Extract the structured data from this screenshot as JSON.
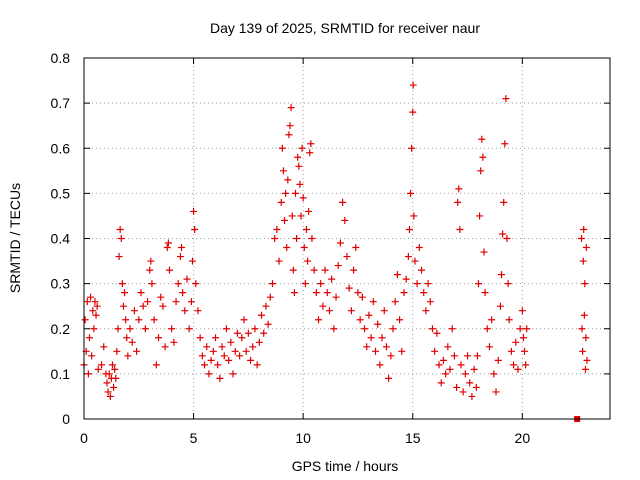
{
  "chart_data": {
    "type": "scatter",
    "title": "Day 139 of 2025, SRMTID for receiver naur",
    "xlabel": "GPS time / hours",
    "ylabel": "SRMTID / TECUs",
    "xlim": [
      0,
      24
    ],
    "ylim": [
      0,
      0.8
    ],
    "xticks": [
      0,
      5,
      10,
      15,
      20
    ],
    "xtick_labels": [
      "0",
      "5",
      "10",
      "15",
      "20"
    ],
    "yticks": [
      0,
      0.1,
      0.2,
      0.3,
      0.4,
      0.5,
      0.6,
      0.7,
      0.8
    ],
    "ytick_labels": [
      "0",
      "0.1",
      "0.2",
      "0.3",
      "0.4",
      "0.5",
      "0.6",
      "0.7",
      "0.8"
    ],
    "grid": true,
    "marker": "plus",
    "color": "#e00000",
    "series": [
      {
        "name": "SRMTID",
        "points": [
          [
            0.0,
            0.12
          ],
          [
            0.05,
            0.22
          ],
          [
            0.1,
            0.15
          ],
          [
            0.15,
            0.26
          ],
          [
            0.2,
            0.1
          ],
          [
            0.25,
            0.18
          ],
          [
            0.3,
            0.27
          ],
          [
            0.35,
            0.14
          ],
          [
            0.4,
            0.24
          ],
          [
            0.45,
            0.2
          ],
          [
            0.5,
            0.26
          ],
          [
            0.55,
            0.23
          ],
          [
            0.6,
            0.25
          ],
          [
            0.65,
            0.11
          ],
          [
            0.8,
            0.12
          ],
          [
            0.9,
            0.16
          ],
          [
            1.0,
            0.1
          ],
          [
            1.05,
            0.08
          ],
          [
            1.1,
            0.06
          ],
          [
            1.15,
            0.1
          ],
          [
            1.2,
            0.05
          ],
          [
            1.25,
            0.09
          ],
          [
            1.3,
            0.12
          ],
          [
            1.35,
            0.07
          ],
          [
            1.4,
            0.11
          ],
          [
            1.45,
            0.09
          ],
          [
            1.5,
            0.15
          ],
          [
            1.55,
            0.2
          ],
          [
            1.6,
            0.36
          ],
          [
            1.65,
            0.42
          ],
          [
            1.7,
            0.4
          ],
          [
            1.75,
            0.3
          ],
          [
            1.8,
            0.25
          ],
          [
            1.85,
            0.28
          ],
          [
            1.9,
            0.22
          ],
          [
            1.95,
            0.18
          ],
          [
            2.0,
            0.14
          ],
          [
            2.1,
            0.2
          ],
          [
            2.2,
            0.17
          ],
          [
            2.3,
            0.24
          ],
          [
            2.4,
            0.15
          ],
          [
            2.5,
            0.22
          ],
          [
            2.6,
            0.28
          ],
          [
            2.7,
            0.25
          ],
          [
            2.8,
            0.2
          ],
          [
            2.9,
            0.26
          ],
          [
            3.0,
            0.33
          ],
          [
            3.05,
            0.35
          ],
          [
            3.1,
            0.3
          ],
          [
            3.2,
            0.22
          ],
          [
            3.3,
            0.12
          ],
          [
            3.4,
            0.18
          ],
          [
            3.5,
            0.27
          ],
          [
            3.6,
            0.25
          ],
          [
            3.7,
            0.16
          ],
          [
            3.8,
            0.38
          ],
          [
            3.85,
            0.39
          ],
          [
            3.9,
            0.33
          ],
          [
            4.0,
            0.2
          ],
          [
            4.1,
            0.17
          ],
          [
            4.2,
            0.26
          ],
          [
            4.3,
            0.3
          ],
          [
            4.4,
            0.36
          ],
          [
            4.45,
            0.38
          ],
          [
            4.5,
            0.28
          ],
          [
            4.6,
            0.24
          ],
          [
            4.7,
            0.31
          ],
          [
            4.8,
            0.2
          ],
          [
            4.9,
            0.26
          ],
          [
            4.95,
            0.35
          ],
          [
            5.0,
            0.46
          ],
          [
            5.05,
            0.42
          ],
          [
            5.1,
            0.3
          ],
          [
            5.2,
            0.24
          ],
          [
            5.3,
            0.18
          ],
          [
            5.4,
            0.14
          ],
          [
            5.5,
            0.12
          ],
          [
            5.6,
            0.16
          ],
          [
            5.7,
            0.1
          ],
          [
            5.8,
            0.13
          ],
          [
            5.9,
            0.15
          ],
          [
            6.0,
            0.18
          ],
          [
            6.1,
            0.12
          ],
          [
            6.2,
            0.09
          ],
          [
            6.3,
            0.16
          ],
          [
            6.4,
            0.14
          ],
          [
            6.5,
            0.2
          ],
          [
            6.6,
            0.13
          ],
          [
            6.7,
            0.17
          ],
          [
            6.8,
            0.1
          ],
          [
            6.9,
            0.15
          ],
          [
            7.0,
            0.19
          ],
          [
            7.1,
            0.14
          ],
          [
            7.2,
            0.18
          ],
          [
            7.3,
            0.22
          ],
          [
            7.4,
            0.15
          ],
          [
            7.5,
            0.19
          ],
          [
            7.6,
            0.13
          ],
          [
            7.7,
            0.16
          ],
          [
            7.8,
            0.2
          ],
          [
            7.9,
            0.12
          ],
          [
            8.0,
            0.17
          ],
          [
            8.1,
            0.23
          ],
          [
            8.2,
            0.19
          ],
          [
            8.3,
            0.25
          ],
          [
            8.4,
            0.21
          ],
          [
            8.5,
            0.27
          ],
          [
            8.6,
            0.3
          ],
          [
            8.7,
            0.4
          ],
          [
            8.8,
            0.42
          ],
          [
            8.9,
            0.35
          ],
          [
            9.0,
            0.48
          ],
          [
            9.05,
            0.6
          ],
          [
            9.1,
            0.55
          ],
          [
            9.15,
            0.44
          ],
          [
            9.2,
            0.5
          ],
          [
            9.25,
            0.38
          ],
          [
            9.3,
            0.53
          ],
          [
            9.35,
            0.63
          ],
          [
            9.4,
            0.65
          ],
          [
            9.45,
            0.69
          ],
          [
            9.5,
            0.45
          ],
          [
            9.55,
            0.33
          ],
          [
            9.6,
            0.28
          ],
          [
            9.65,
            0.5
          ],
          [
            9.7,
            0.4
          ],
          [
            9.75,
            0.58
          ],
          [
            9.8,
            0.56
          ],
          [
            9.85,
            0.52
          ],
          [
            9.9,
            0.45
          ],
          [
            9.95,
            0.6
          ],
          [
            10.0,
            0.49
          ],
          [
            10.05,
            0.38
          ],
          [
            10.1,
            0.3
          ],
          [
            10.15,
            0.42
          ],
          [
            10.2,
            0.35
          ],
          [
            10.25,
            0.46
          ],
          [
            10.3,
            0.59
          ],
          [
            10.35,
            0.61
          ],
          [
            10.4,
            0.4
          ],
          [
            10.5,
            0.33
          ],
          [
            10.6,
            0.28
          ],
          [
            10.7,
            0.22
          ],
          [
            10.8,
            0.3
          ],
          [
            10.9,
            0.25
          ],
          [
            11.0,
            0.33
          ],
          [
            11.1,
            0.28
          ],
          [
            11.2,
            0.24
          ],
          [
            11.3,
            0.31
          ],
          [
            11.4,
            0.2
          ],
          [
            11.5,
            0.27
          ],
          [
            11.6,
            0.34
          ],
          [
            11.7,
            0.39
          ],
          [
            11.8,
            0.48
          ],
          [
            11.9,
            0.44
          ],
          [
            12.0,
            0.36
          ],
          [
            12.1,
            0.29
          ],
          [
            12.2,
            0.24
          ],
          [
            12.3,
            0.33
          ],
          [
            12.4,
            0.38
          ],
          [
            12.5,
            0.28
          ],
          [
            12.6,
            0.22
          ],
          [
            12.7,
            0.27
          ],
          [
            12.8,
            0.2
          ],
          [
            12.9,
            0.16
          ],
          [
            13.0,
            0.23
          ],
          [
            13.1,
            0.18
          ],
          [
            13.2,
            0.26
          ],
          [
            13.3,
            0.15
          ],
          [
            13.4,
            0.21
          ],
          [
            13.5,
            0.12
          ],
          [
            13.6,
            0.18
          ],
          [
            13.7,
            0.24
          ],
          [
            13.8,
            0.16
          ],
          [
            13.9,
            0.09
          ],
          [
            14.0,
            0.14
          ],
          [
            14.1,
            0.2
          ],
          [
            14.2,
            0.26
          ],
          [
            14.3,
            0.32
          ],
          [
            14.4,
            0.22
          ],
          [
            14.5,
            0.15
          ],
          [
            14.6,
            0.28
          ],
          [
            14.7,
            0.31
          ],
          [
            14.8,
            0.36
          ],
          [
            14.85,
            0.42
          ],
          [
            14.9,
            0.5
          ],
          [
            14.95,
            0.6
          ],
          [
            15.0,
            0.68
          ],
          [
            15.02,
            0.74
          ],
          [
            15.05,
            0.45
          ],
          [
            15.1,
            0.35
          ],
          [
            15.2,
            0.3
          ],
          [
            15.3,
            0.38
          ],
          [
            15.4,
            0.33
          ],
          [
            15.5,
            0.28
          ],
          [
            15.6,
            0.24
          ],
          [
            15.7,
            0.3
          ],
          [
            15.8,
            0.26
          ],
          [
            15.9,
            0.2
          ],
          [
            16.0,
            0.15
          ],
          [
            16.1,
            0.19
          ],
          [
            16.2,
            0.12
          ],
          [
            16.3,
            0.08
          ],
          [
            16.4,
            0.13
          ],
          [
            16.5,
            0.1
          ],
          [
            16.6,
            0.16
          ],
          [
            16.7,
            0.11
          ],
          [
            16.8,
            0.2
          ],
          [
            16.9,
            0.14
          ],
          [
            17.0,
            0.07
          ],
          [
            17.05,
            0.48
          ],
          [
            17.1,
            0.51
          ],
          [
            17.15,
            0.42
          ],
          [
            17.2,
            0.12
          ],
          [
            17.3,
            0.06
          ],
          [
            17.4,
            0.1
          ],
          [
            17.5,
            0.14
          ],
          [
            17.6,
            0.08
          ],
          [
            17.7,
            0.05
          ],
          [
            17.8,
            0.11
          ],
          [
            17.9,
            0.07
          ],
          [
            17.95,
            0.14
          ],
          [
            18.0,
            0.3
          ],
          [
            18.05,
            0.45
          ],
          [
            18.1,
            0.55
          ],
          [
            18.15,
            0.62
          ],
          [
            18.2,
            0.58
          ],
          [
            18.25,
            0.37
          ],
          [
            18.3,
            0.28
          ],
          [
            18.4,
            0.2
          ],
          [
            18.5,
            0.16
          ],
          [
            18.6,
            0.22
          ],
          [
            18.7,
            0.1
          ],
          [
            18.8,
            0.06
          ],
          [
            18.9,
            0.13
          ],
          [
            19.0,
            0.25
          ],
          [
            19.05,
            0.32
          ],
          [
            19.1,
            0.41
          ],
          [
            19.15,
            0.48
          ],
          [
            19.2,
            0.61
          ],
          [
            19.25,
            0.71
          ],
          [
            19.3,
            0.4
          ],
          [
            19.35,
            0.3
          ],
          [
            19.4,
            0.22
          ],
          [
            19.5,
            0.15
          ],
          [
            19.6,
            0.12
          ],
          [
            19.7,
            0.17
          ],
          [
            19.8,
            0.11
          ],
          [
            19.9,
            0.2
          ],
          [
            20.0,
            0.24
          ],
          [
            20.05,
            0.18
          ],
          [
            20.1,
            0.15
          ],
          [
            20.15,
            0.12
          ],
          [
            20.2,
            0.2
          ],
          [
            22.7,
            0.4
          ],
          [
            22.72,
            0.2
          ],
          [
            22.75,
            0.15
          ],
          [
            22.78,
            0.35
          ],
          [
            22.8,
            0.42
          ],
          [
            22.83,
            0.23
          ],
          [
            22.85,
            0.3
          ],
          [
            22.88,
            0.11
          ],
          [
            22.9,
            0.18
          ],
          [
            22.92,
            0.38
          ],
          [
            22.95,
            0.13
          ]
        ]
      }
    ],
    "marker_points": [
      [
        22.5,
        0.0
      ]
    ]
  }
}
